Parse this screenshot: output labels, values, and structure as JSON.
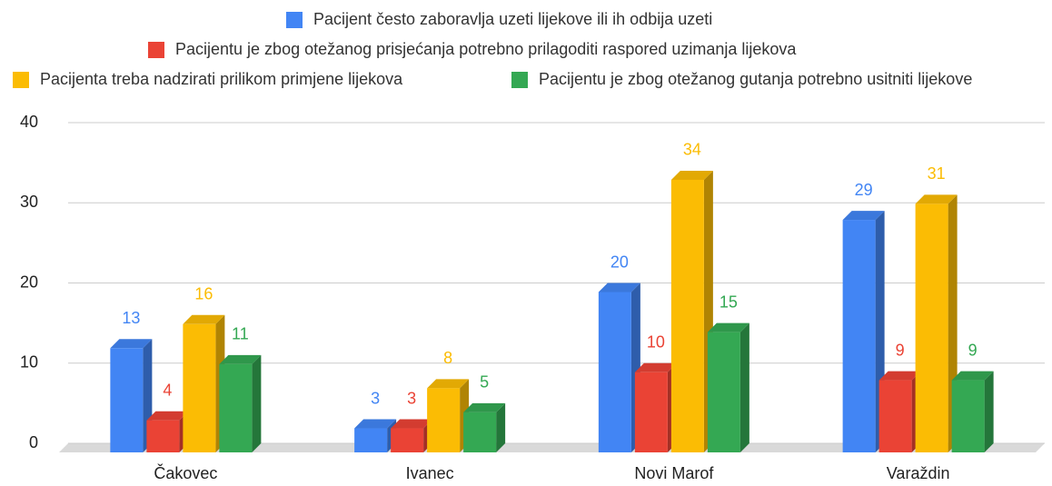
{
  "chart_data": {
    "type": "bar",
    "categories": [
      "Čakovec",
      "Ivanec",
      "Novi Marof",
      "Varaždin"
    ],
    "series": [
      {
        "name": "Pacijent često zaboravlja uzeti lijekove ili ih odbija uzeti",
        "color": "#4285f4",
        "values": [
          13,
          3,
          20,
          29
        ]
      },
      {
        "name": "Pacijentu je zbog otežanog prisjećanja potrebno prilagoditi raspored uzimanja lijekova",
        "color": "#ea4335",
        "values": [
          4,
          3,
          10,
          9
        ]
      },
      {
        "name": "Pacijenta treba nadzirati prilikom primjene lijekova",
        "color": "#fbbc04",
        "values": [
          16,
          8,
          34,
          31
        ]
      },
      {
        "name": "Pacijentu je zbog otežanog gutanja potrebno usitniti lijekove",
        "color": "#34a853",
        "values": [
          11,
          5,
          15,
          9
        ]
      }
    ],
    "ylim": [
      0,
      40
    ],
    "yticks": [
      0,
      10,
      20,
      30,
      40
    ],
    "grid": true,
    "legend": "top"
  }
}
